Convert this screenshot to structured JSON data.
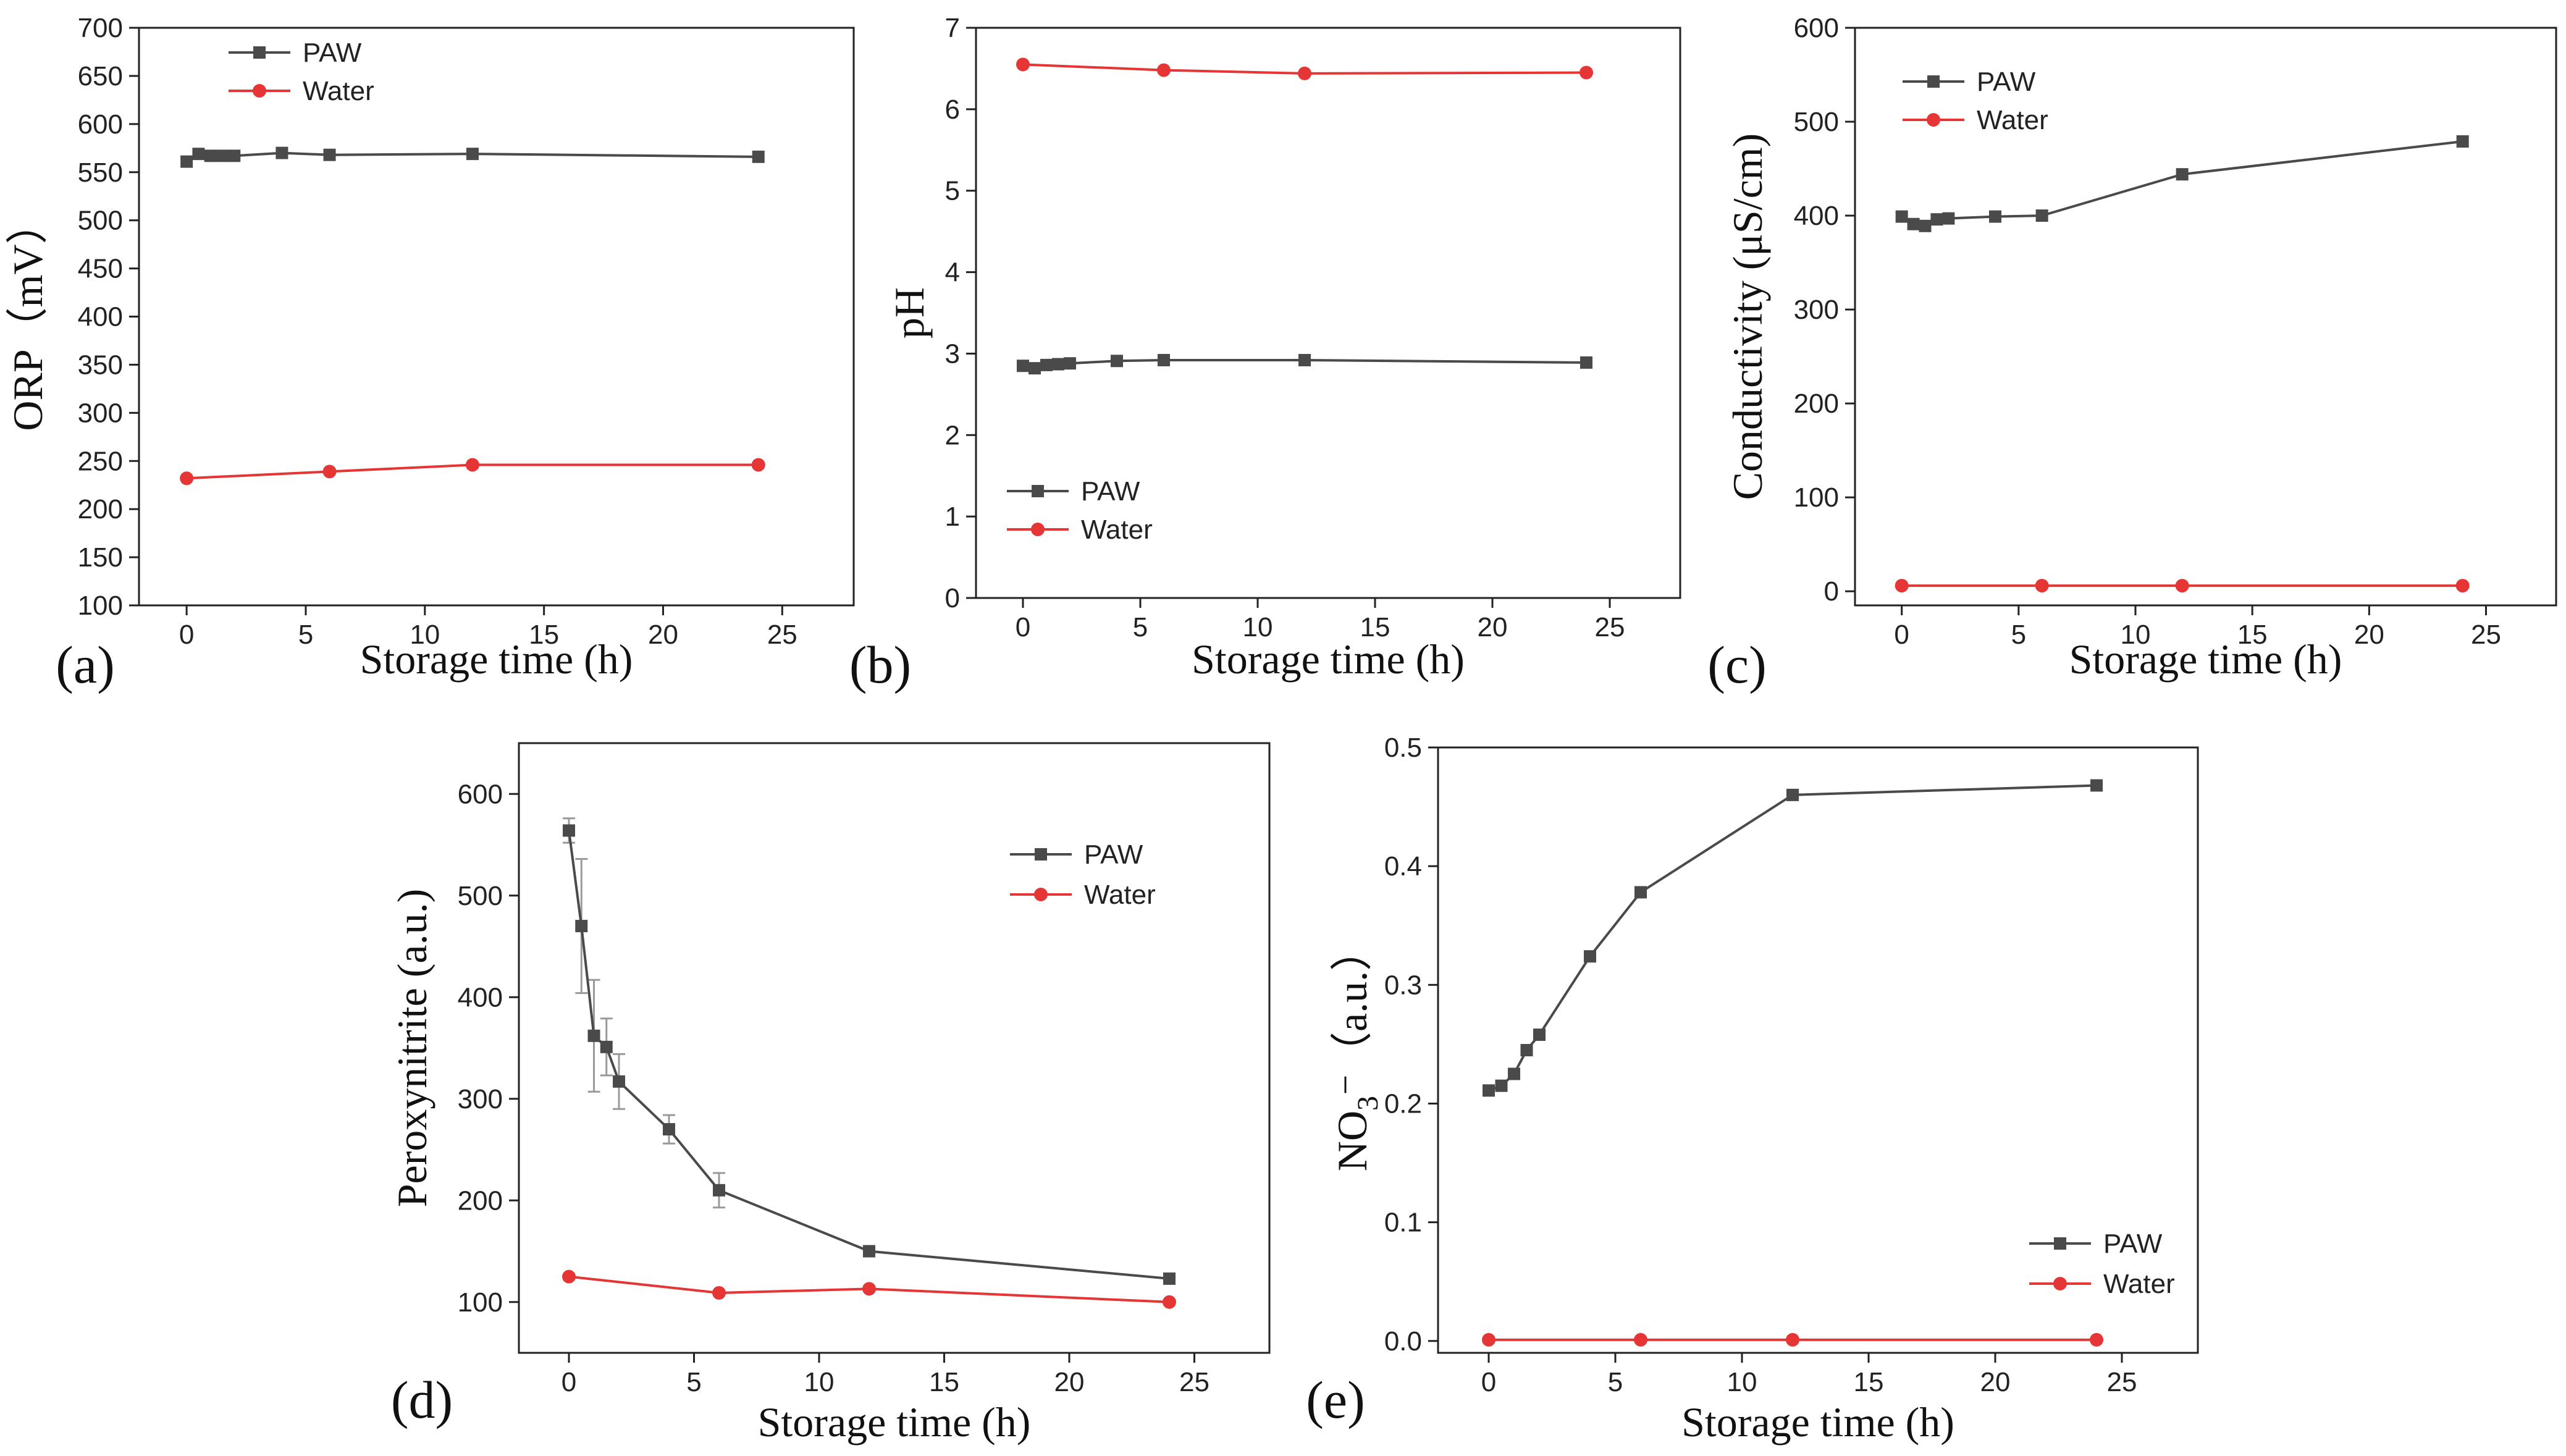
{
  "colors": {
    "paw": "#4a4a4a",
    "water": "#e53535"
  },
  "chart_data": [
    {
      "id": "a",
      "type": "line",
      "panel_label": "(a)",
      "xlabel": "Storage time (h)",
      "ylabel": "ORP（mV）",
      "xlim": [
        -2,
        28
      ],
      "ylim": [
        100,
        700
      ],
      "xticks": [
        0,
        5,
        10,
        15,
        20,
        25
      ],
      "yticks": [
        100,
        150,
        200,
        250,
        300,
        350,
        400,
        450,
        500,
        550,
        600,
        650,
        700
      ],
      "legend": {
        "position": "top-left"
      },
      "series": [
        {
          "name": "PAW",
          "marker": "square",
          "x": [
            0,
            0.5,
            1,
            1.5,
            2,
            4,
            6,
            12,
            24
          ],
          "y": [
            561,
            569,
            567,
            567,
            567,
            570,
            568,
            569,
            566
          ]
        },
        {
          "name": "Water",
          "marker": "circle",
          "x": [
            0,
            6,
            12,
            24
          ],
          "y": [
            232,
            239,
            246,
            246
          ]
        }
      ]
    },
    {
      "id": "b",
      "type": "line",
      "panel_label": "(b)",
      "xlabel": "Storage time (h)",
      "ylabel": "pH",
      "xlim": [
        -2,
        28
      ],
      "ylim": [
        0,
        7
      ],
      "xticks": [
        0,
        5,
        10,
        15,
        20,
        25
      ],
      "yticks": [
        0,
        1,
        2,
        3,
        4,
        5,
        6,
        7
      ],
      "legend": {
        "position": "bottom-left"
      },
      "series": [
        {
          "name": "PAW",
          "marker": "square",
          "x": [
            0,
            0.5,
            1,
            1.5,
            2,
            4,
            6,
            12,
            24
          ],
          "y": [
            2.85,
            2.82,
            2.86,
            2.87,
            2.88,
            2.91,
            2.92,
            2.92,
            2.89
          ]
        },
        {
          "name": "Water",
          "marker": "circle",
          "x": [
            0,
            6,
            12,
            24
          ],
          "y": [
            6.55,
            6.48,
            6.44,
            6.45
          ]
        }
      ]
    },
    {
      "id": "c",
      "type": "line",
      "panel_label": "(c)",
      "xlabel": "Storage time (h)",
      "ylabel": "Conductivity (μS/cm)",
      "xlim": [
        -2,
        28
      ],
      "ylim": [
        -15,
        600
      ],
      "xticks": [
        0,
        5,
        10,
        15,
        20,
        25
      ],
      "yticks": [
        0,
        100,
        200,
        300,
        400,
        500,
        600
      ],
      "legend": {
        "position": "top-left"
      },
      "series": [
        {
          "name": "PAW",
          "marker": "square",
          "x": [
            0,
            0.5,
            1,
            1.5,
            2,
            4,
            6,
            12,
            24
          ],
          "y": [
            399,
            391,
            389,
            396,
            397,
            399,
            400,
            444,
            479
          ]
        },
        {
          "name": "Water",
          "marker": "circle",
          "x": [
            0,
            6,
            12,
            24
          ],
          "y": [
            6,
            6,
            6,
            6
          ]
        }
      ]
    },
    {
      "id": "d",
      "type": "line",
      "panel_label": "(d)",
      "xlabel": "Storage time (h)",
      "ylabel": "Peroxynitrite (a.u.)",
      "xlim": [
        -2,
        28
      ],
      "ylim": [
        50,
        650
      ],
      "xticks": [
        0,
        5,
        10,
        15,
        20,
        25
      ],
      "yticks": [
        100,
        200,
        300,
        400,
        500,
        600
      ],
      "legend": {
        "position": "top-right"
      },
      "series": [
        {
          "name": "PAW",
          "marker": "square",
          "x": [
            0,
            0.5,
            1,
            1.5,
            2,
            4,
            6,
            12,
            24
          ],
          "y": [
            564,
            470,
            362,
            351,
            317,
            270,
            210,
            150,
            123
          ],
          "err": [
            12,
            66,
            55,
            28,
            27,
            14,
            17,
            5,
            4
          ]
        },
        {
          "name": "Water",
          "marker": "circle",
          "x": [
            0,
            6,
            12,
            24
          ],
          "y": [
            125,
            109,
            113,
            100
          ]
        }
      ]
    },
    {
      "id": "e",
      "type": "line",
      "panel_label": "(e)",
      "xlabel": "Storage time (h)",
      "ylabel": "NO3⁻（a.u.）",
      "ylabel_parts": [
        "NO",
        "3",
        "⁻（a.u.）"
      ],
      "xlim": [
        -2,
        28
      ],
      "ylim": [
        -0.01,
        0.5
      ],
      "xticks": [
        0,
        5,
        10,
        15,
        20,
        25
      ],
      "yticks": [
        0.0,
        0.1,
        0.2,
        0.3,
        0.4,
        0.5
      ],
      "ytick_decimals": 1,
      "legend": {
        "position": "bottom-right"
      },
      "series": [
        {
          "name": "PAW",
          "marker": "square",
          "x": [
            0,
            0.5,
            1,
            1.5,
            2,
            4,
            6,
            12,
            24
          ],
          "y": [
            0.211,
            0.215,
            0.225,
            0.245,
            0.258,
            0.324,
            0.378,
            0.46,
            0.468
          ]
        },
        {
          "name": "Water",
          "marker": "circle",
          "x": [
            0,
            6,
            12,
            24
          ],
          "y": [
            0.001,
            0.001,
            0.001,
            0.001
          ]
        }
      ]
    }
  ]
}
